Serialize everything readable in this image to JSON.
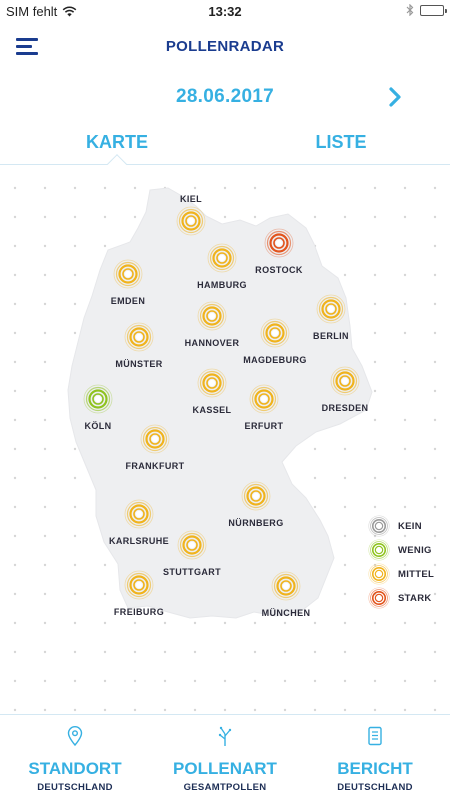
{
  "status": {
    "carrier": "SIM fehlt",
    "time": "13:32"
  },
  "header": {
    "title": "POLLENRADAR"
  },
  "date": {
    "label": "28.06.2017"
  },
  "tabs": [
    {
      "label": "KARTE",
      "active": true
    },
    {
      "label": "LISTE",
      "active": false
    }
  ],
  "levels": {
    "kein": {
      "label": "KEIN",
      "color": "#9a9a9a"
    },
    "wenig": {
      "label": "WENIG",
      "color": "#8fc31f"
    },
    "mittel": {
      "label": "MITTEL",
      "color": "#f0b31c"
    },
    "stark": {
      "label": "STARK",
      "color": "#e2541d"
    }
  },
  "cities": [
    {
      "name": "KIEL",
      "level": "mittel"
    },
    {
      "name": "ROSTOCK",
      "level": "stark"
    },
    {
      "name": "HAMBURG",
      "level": "mittel"
    },
    {
      "name": "EMDEN",
      "level": "mittel"
    },
    {
      "name": "BERLIN",
      "level": "mittel"
    },
    {
      "name": "HANNOVER",
      "level": "mittel"
    },
    {
      "name": "MAGDEBURG",
      "level": "mittel"
    },
    {
      "name": "MÜNSTER",
      "level": "mittel"
    },
    {
      "name": "DRESDEN",
      "level": "mittel"
    },
    {
      "name": "KASSEL",
      "level": "mittel"
    },
    {
      "name": "KÖLN",
      "level": "wenig"
    },
    {
      "name": "ERFURT",
      "level": "mittel"
    },
    {
      "name": "FRANKFURT",
      "level": "mittel"
    },
    {
      "name": "NÜRNBERG",
      "level": "mittel"
    },
    {
      "name": "KARLSRUHE",
      "level": "mittel"
    },
    {
      "name": "STUTTGART",
      "level": "mittel"
    },
    {
      "name": "FREIBURG",
      "level": "mittel"
    },
    {
      "name": "MÜNCHEN",
      "level": "mittel"
    }
  ],
  "legend": [
    "kein",
    "wenig",
    "mittel",
    "stark"
  ],
  "nav": {
    "standort": {
      "title": "STANDORT",
      "sub": "DEUTSCHLAND",
      "icon": "location-pin-icon"
    },
    "pollenart": {
      "title": "POLLENART",
      "sub": "GESAMTPOLLEN",
      "icon": "plant-icon"
    },
    "bericht": {
      "title": "BERICHT",
      "sub": "DEUTSCHLAND",
      "icon": "document-icon"
    }
  }
}
